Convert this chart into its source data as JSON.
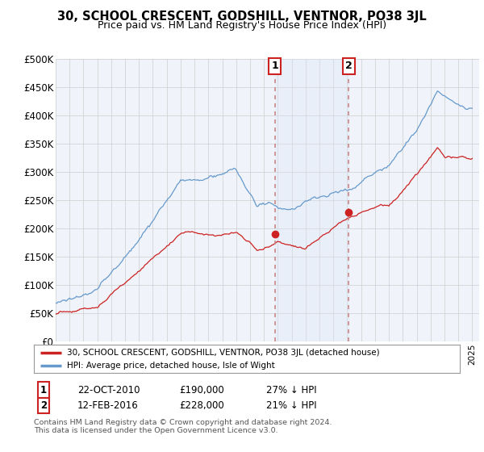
{
  "title": "30, SCHOOL CRESCENT, GODSHILL, VENTNOR, PO38 3JL",
  "subtitle": "Price paid vs. HM Land Registry's House Price Index (HPI)",
  "background_color": "#ffffff",
  "plot_bg_color": "#f0f4fa",
  "grid_color": "#cccccc",
  "shaded_region_color": "#dce8f8",
  "hpi_color": "#6699cc",
  "price_color": "#cc2222",
  "dashed_line_color": "#cc8888",
  "box_edge_color": "#cc2222",
  "sale1_year": 2010.8,
  "sale1_price": 190000,
  "sale2_year": 2016.1,
  "sale2_price": 228000,
  "legend_line1": "30, SCHOOL CRESCENT, GODSHILL, VENTNOR, PO38 3JL (detached house)",
  "legend_line2": "HPI: Average price, detached house, Isle of Wight",
  "footnote1": "Contains HM Land Registry data © Crown copyright and database right 2024.",
  "footnote2": "This data is licensed under the Open Government Licence v3.0.",
  "table_row1": [
    "1",
    "22-OCT-2010",
    "£190,000",
    "27% ↓ HPI"
  ],
  "table_row2": [
    "2",
    "12-FEB-2016",
    "£228,000",
    "21% ↓ HPI"
  ],
  "ylim": [
    0,
    500000
  ],
  "yticks": [
    0,
    50000,
    100000,
    150000,
    200000,
    250000,
    300000,
    350000,
    400000,
    450000,
    500000
  ],
  "ytick_labels": [
    "£0",
    "£50K",
    "£100K",
    "£150K",
    "£200K",
    "£250K",
    "£300K",
    "£350K",
    "£400K",
    "£450K",
    "£500K"
  ]
}
